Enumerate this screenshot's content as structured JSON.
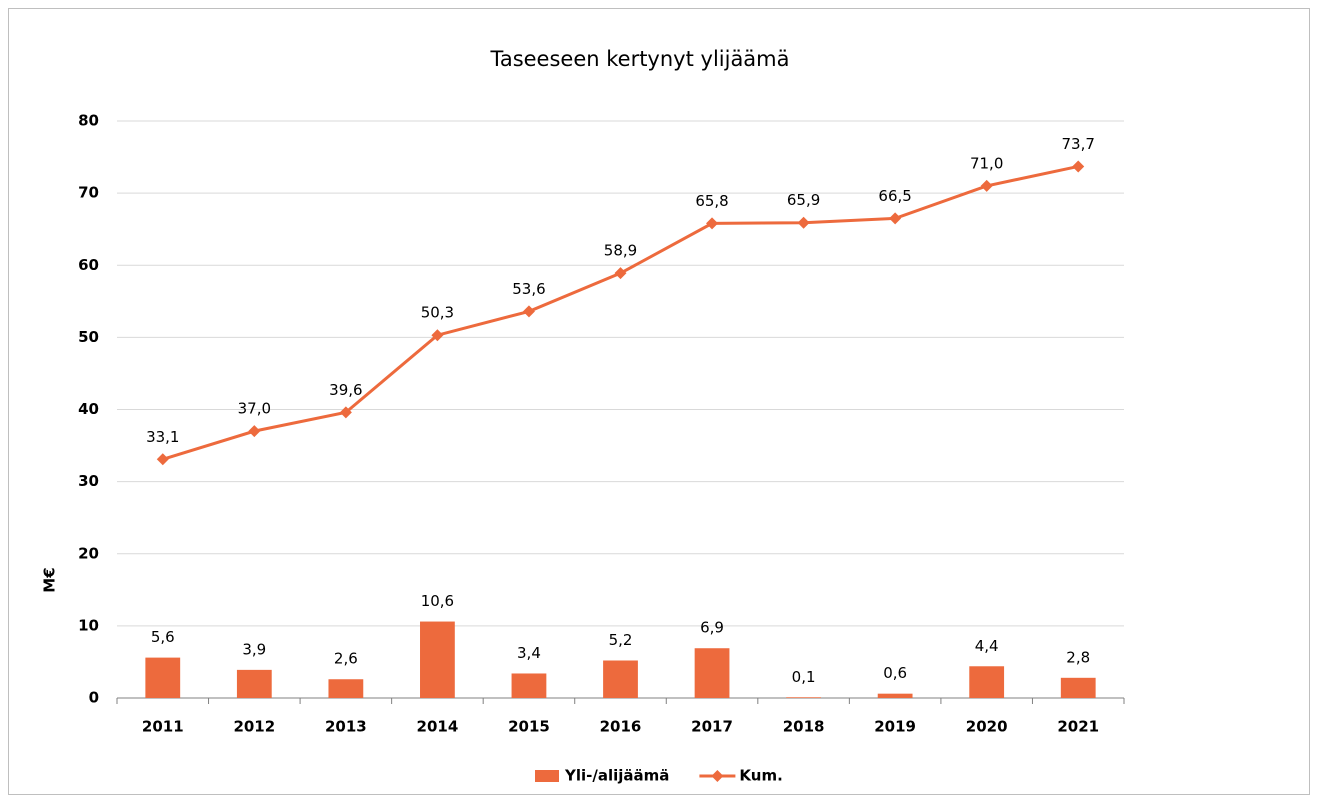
{
  "chart_data": {
    "type": "combo",
    "title": "Taseeseen kertynyt ylijäämä",
    "y_label": "M€",
    "categories": [
      "2011",
      "2012",
      "2013",
      "2014",
      "2015",
      "2016",
      "2017",
      "2018",
      "2019",
      "2020",
      "2021"
    ],
    "series": [
      {
        "name": "Yli-/alijäämä",
        "type": "bar",
        "color": "#ed6a3d",
        "values": [
          5.6,
          3.9,
          2.6,
          10.6,
          3.4,
          5.2,
          6.9,
          0.1,
          0.6,
          4.4,
          2.8
        ],
        "value_labels": [
          "5,6",
          "3,9",
          "2,6",
          "10,6",
          "3,4",
          "5,2",
          "6,9",
          "0,1",
          "0,6",
          "4,4",
          "2,8"
        ]
      },
      {
        "name": "Kum.",
        "type": "line",
        "color": "#ed6a3d",
        "values": [
          33.1,
          37.0,
          39.6,
          50.3,
          53.6,
          58.9,
          65.8,
          65.9,
          66.5,
          71.0,
          73.7
        ],
        "value_labels": [
          "33,1",
          "37,0",
          "39,6",
          "50,3",
          "53,6",
          "58,9",
          "65,8",
          "65,9",
          "66,5",
          "71,0",
          "73,7"
        ]
      }
    ],
    "ylim": [
      0,
      80
    ],
    "yticks": [
      0,
      10,
      20,
      30,
      40,
      50,
      60,
      70,
      80
    ],
    "grid": true,
    "legend": "bottom"
  }
}
